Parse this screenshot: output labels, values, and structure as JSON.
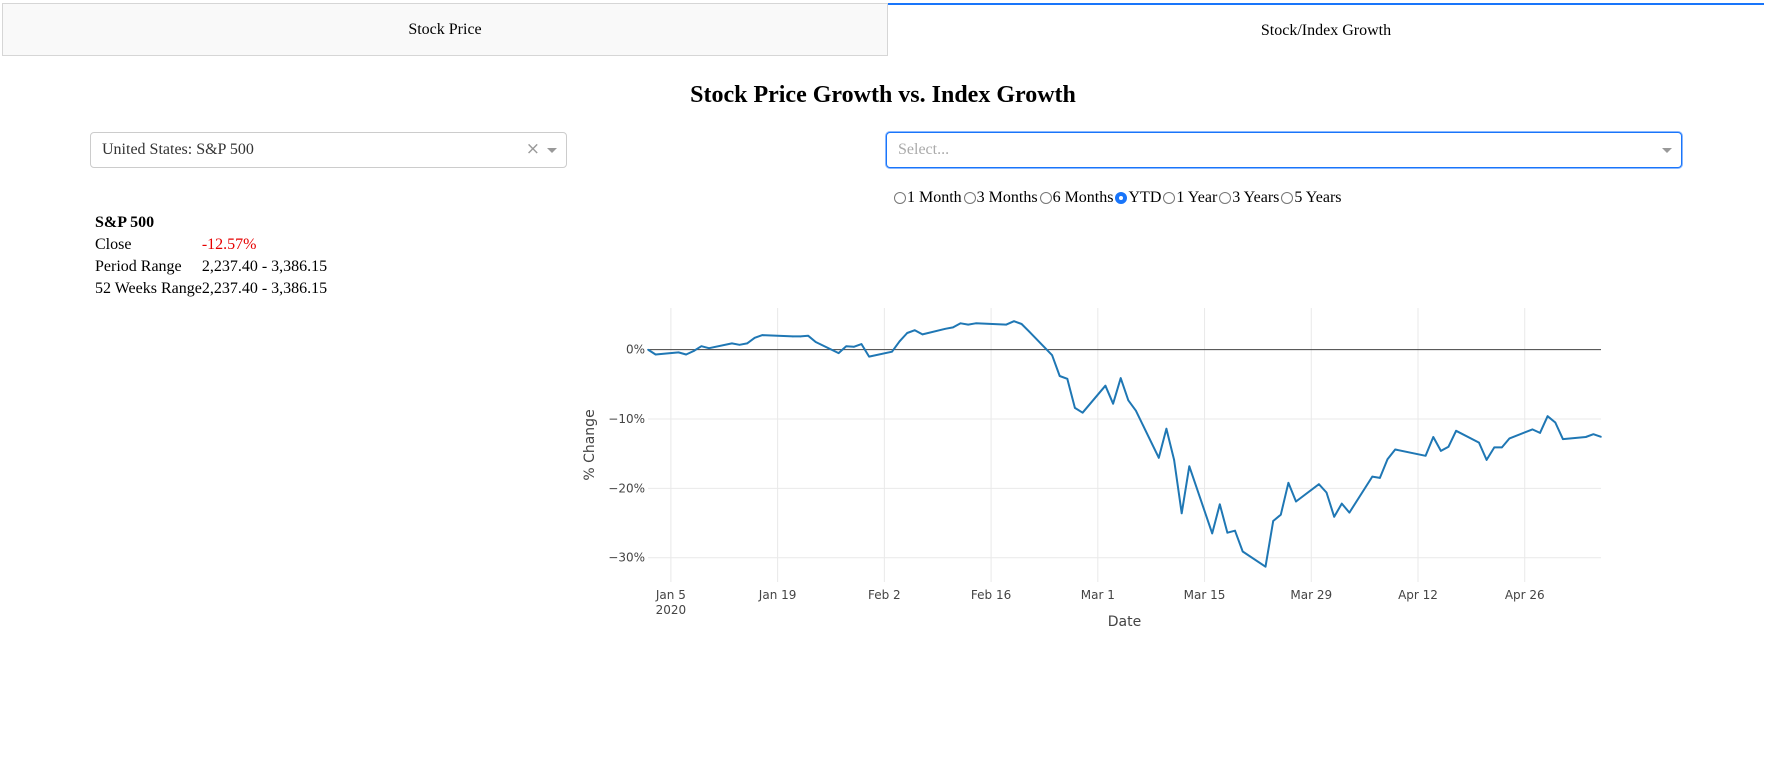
{
  "tabs": [
    {
      "label": "Stock Price",
      "active": false
    },
    {
      "label": "Stock/Index Growth",
      "active": true
    }
  ],
  "page_title": "Stock Price Growth vs. Index Growth",
  "index_select": {
    "value": "United States: S&P 500"
  },
  "stock_select": {
    "placeholder": "Select..."
  },
  "period_options": [
    {
      "label": "1 Month",
      "selected": false
    },
    {
      "label": "3 Months",
      "selected": false
    },
    {
      "label": "6 Months",
      "selected": false
    },
    {
      "label": "YTD",
      "selected": true
    },
    {
      "label": "1 Year",
      "selected": false
    },
    {
      "label": "3 Years",
      "selected": false
    },
    {
      "label": "5 Years",
      "selected": false
    }
  ],
  "stats": {
    "title": "S&P 500",
    "close_label": "Close",
    "close_value": "-12.57%",
    "period_range_label": "Period Range",
    "period_range_value": "2,237.40 - 3,386.15",
    "weeks_range_label": "52 Weeks Range",
    "weeks_range_value": "2,237.40 - 3,386.15"
  },
  "colors": {
    "accent": "#1975fa",
    "line": "#1f77b4",
    "negative": "#e60000"
  },
  "chart_data": {
    "type": "line",
    "xlabel": "Date",
    "ylabel": "% Change",
    "x_ticks": [
      "Jan 5\n2020",
      "Jan 19",
      "Feb 2",
      "Feb 16",
      "Mar 1",
      "Mar 15",
      "Mar 29",
      "Apr 12",
      "Apr 26"
    ],
    "y_ticks": [
      "0%",
      "−10%",
      "−20%",
      "−30%"
    ],
    "xlim": [
      "2020-01-02",
      "2020-05-06"
    ],
    "ylim": [
      -33.5,
      6.0
    ],
    "grid": true,
    "zero_line": true,
    "series": [
      {
        "x": [
          "2020-01-02",
          "2020-01-03",
          "2020-01-06",
          "2020-01-07",
          "2020-01-08",
          "2020-01-09",
          "2020-01-10",
          "2020-01-13",
          "2020-01-14",
          "2020-01-15",
          "2020-01-16",
          "2020-01-17",
          "2020-01-21",
          "2020-01-22",
          "2020-01-23",
          "2020-01-24",
          "2020-01-27",
          "2020-01-28",
          "2020-01-29",
          "2020-01-30",
          "2020-01-31",
          "2020-02-03",
          "2020-02-04",
          "2020-02-05",
          "2020-02-06",
          "2020-02-07",
          "2020-02-10",
          "2020-02-11",
          "2020-02-12",
          "2020-02-13",
          "2020-02-14",
          "2020-02-18",
          "2020-02-19",
          "2020-02-20",
          "2020-02-21",
          "2020-02-24",
          "2020-02-25",
          "2020-02-26",
          "2020-02-27",
          "2020-02-28",
          "2020-03-02",
          "2020-03-03",
          "2020-03-04",
          "2020-03-05",
          "2020-03-06",
          "2020-03-09",
          "2020-03-10",
          "2020-03-11",
          "2020-03-12",
          "2020-03-13",
          "2020-03-16",
          "2020-03-17",
          "2020-03-18",
          "2020-03-19",
          "2020-03-20",
          "2020-03-23",
          "2020-03-24",
          "2020-03-25",
          "2020-03-26",
          "2020-03-27",
          "2020-03-30",
          "2020-03-31",
          "2020-04-01",
          "2020-04-02",
          "2020-04-03",
          "2020-04-06",
          "2020-04-07",
          "2020-04-08",
          "2020-04-09",
          "2020-04-13",
          "2020-04-14",
          "2020-04-15",
          "2020-04-16",
          "2020-04-17",
          "2020-04-20",
          "2020-04-21",
          "2020-04-22",
          "2020-04-23",
          "2020-04-24",
          "2020-04-27",
          "2020-04-28",
          "2020-04-29",
          "2020-04-30",
          "2020-05-01",
          "2020-05-04",
          "2020-05-05",
          "2020-05-06"
        ],
        "y": [
          0.0,
          -0.7,
          -0.4,
          -0.7,
          -0.2,
          0.5,
          0.2,
          0.9,
          0.7,
          0.9,
          1.7,
          2.1,
          1.9,
          1.9,
          2.0,
          1.1,
          -0.5,
          0.5,
          0.4,
          0.8,
          -1.0,
          -0.3,
          1.2,
          2.4,
          2.8,
          2.2,
          3.0,
          3.2,
          3.8,
          3.6,
          3.8,
          3.6,
          4.1,
          3.7,
          2.6,
          -0.8,
          -3.8,
          -4.2,
          -8.4,
          -9.1,
          -5.2,
          -7.8,
          -4.1,
          -7.3,
          -8.8,
          -15.6,
          -11.4,
          -15.9,
          -23.6,
          -16.8,
          -26.5,
          -22.3,
          -26.4,
          -26.1,
          -29.1,
          -31.3,
          -24.7,
          -23.8,
          -19.2,
          -21.9,
          -19.4,
          -20.6,
          -24.1,
          -22.2,
          -23.5,
          -18.3,
          -18.5,
          -15.8,
          -14.4,
          -15.3,
          -12.6,
          -14.6,
          -14.0,
          -11.7,
          -13.4,
          -15.9,
          -14.1,
          -14.1,
          -12.8,
          -11.5,
          -12.0,
          -9.6,
          -10.5,
          -12.9,
          -12.6,
          -12.2,
          -12.57
        ]
      }
    ]
  }
}
